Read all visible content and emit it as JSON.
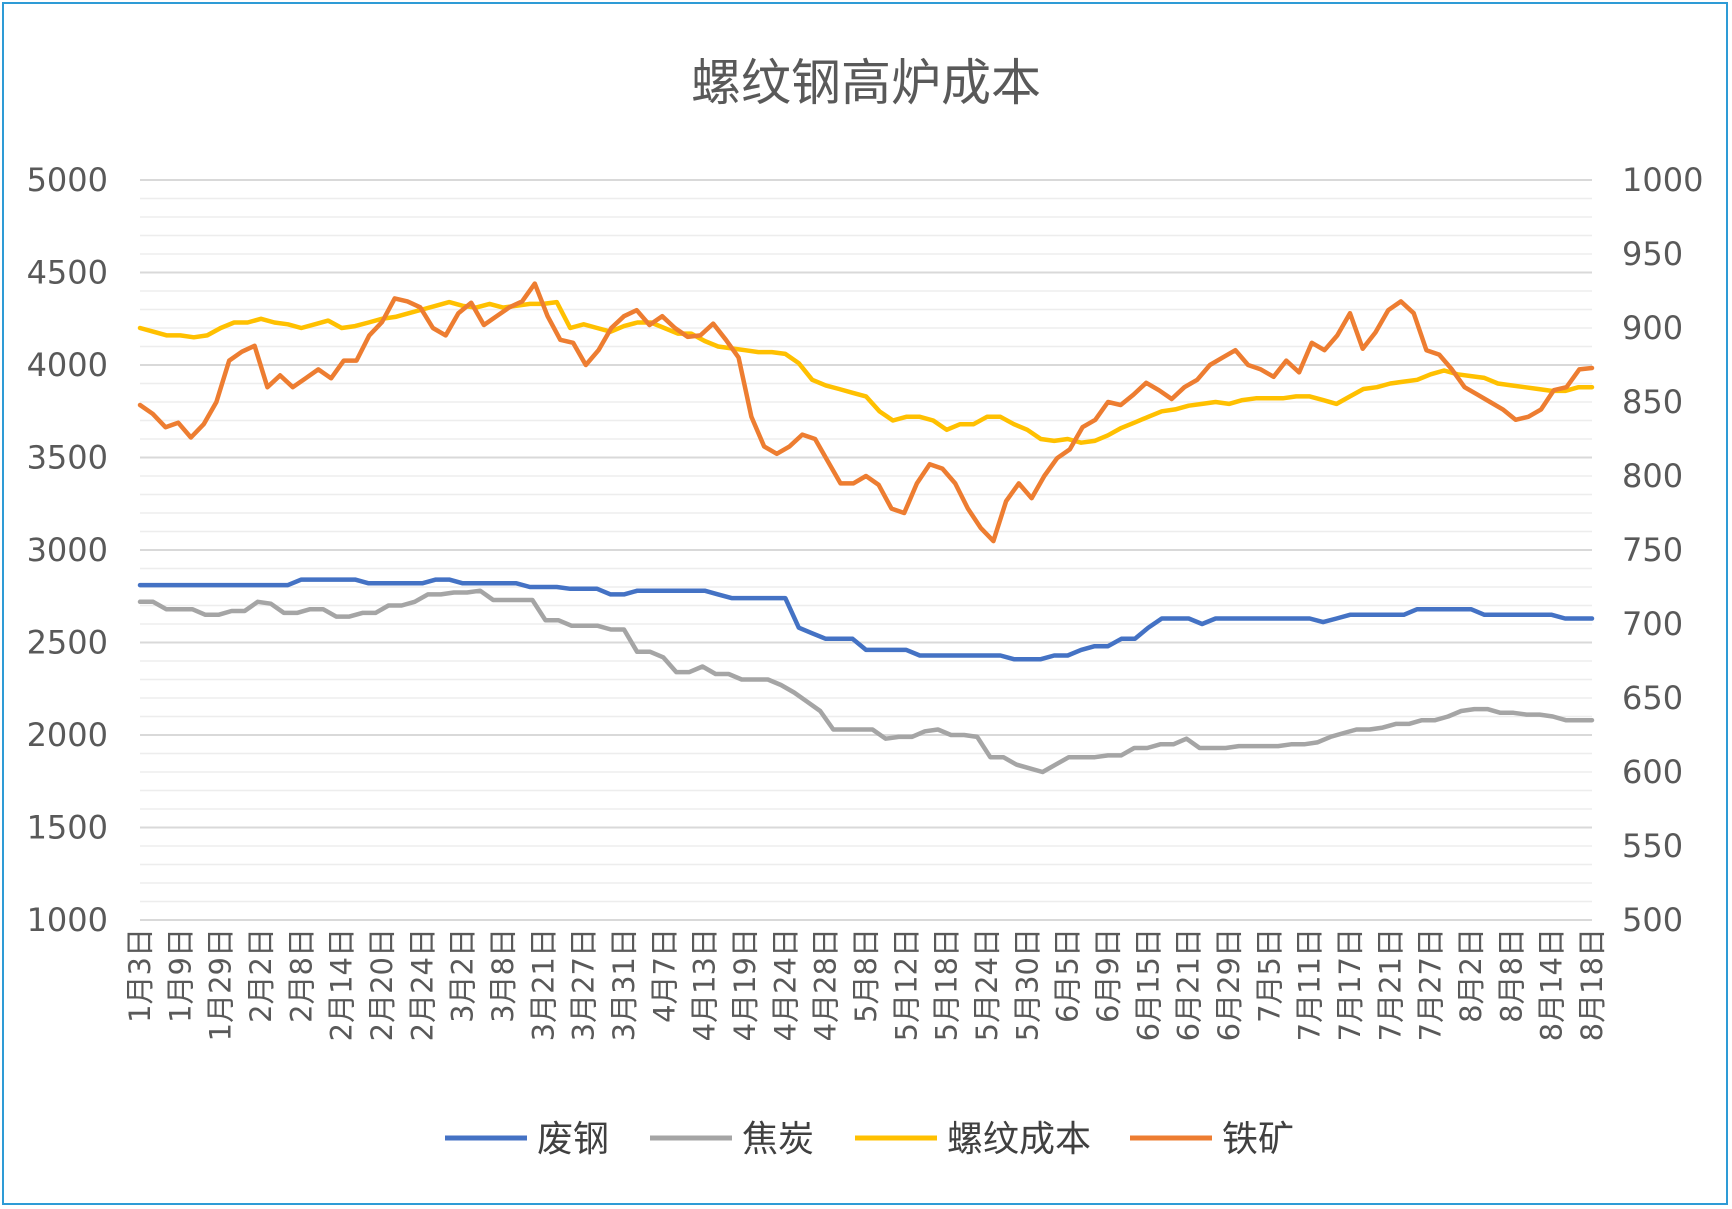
{
  "chart_data": {
    "type": "line",
    "title": "螺纹钢高炉成本",
    "y_left": {
      "min": 1000,
      "max": 5000,
      "ticks": [
        1000,
        1500,
        2000,
        2500,
        3000,
        3500,
        4000,
        4500,
        5000
      ]
    },
    "y_right": {
      "min": 500,
      "max": 1000,
      "ticks": [
        500,
        550,
        600,
        650,
        700,
        750,
        800,
        850,
        900,
        950,
        1000
      ]
    },
    "grid": true,
    "legend_position": "bottom",
    "x_tick_labels": [
      "1月3日",
      "1月9日",
      "1月29日",
      "2月2日",
      "2月8日",
      "2月14日",
      "2月20日",
      "2月24日",
      "3月2日",
      "3月8日",
      "3月21日",
      "3月27日",
      "3月31日",
      "4月7日",
      "4月13日",
      "4月19日",
      "4月24日",
      "4月28日",
      "5月8日",
      "5月12日",
      "5月18日",
      "5月24日",
      "5月30日",
      "6月5日",
      "6月9日",
      "6月15日",
      "6月21日",
      "6月29日",
      "7月5日",
      "7月11日",
      "7月17日",
      "7月21日",
      "7月27日",
      "8月2日",
      "8月8日",
      "8月14日",
      "8月18日"
    ],
    "series": [
      {
        "name": "废钢",
        "axis": "left",
        "color": "#4472C4",
        "values": [
          2810,
          2810,
          2810,
          2810,
          2810,
          2810,
          2810,
          2810,
          2810,
          2810,
          2810,
          2810,
          2840,
          2840,
          2840,
          2840,
          2840,
          2820,
          2820,
          2820,
          2820,
          2820,
          2840,
          2840,
          2820,
          2820,
          2820,
          2820,
          2820,
          2800,
          2800,
          2800,
          2790,
          2790,
          2790,
          2760,
          2760,
          2780,
          2780,
          2780,
          2780,
          2780,
          2780,
          2760,
          2740,
          2740,
          2740,
          2740,
          2740,
          2580,
          2550,
          2520,
          2520,
          2520,
          2460,
          2460,
          2460,
          2460,
          2430,
          2430,
          2430,
          2430,
          2430,
          2430,
          2430,
          2410,
          2410,
          2410,
          2430,
          2430,
          2460,
          2480,
          2480,
          2520,
          2520,
          2580,
          2630,
          2630,
          2630,
          2600,
          2630,
          2630,
          2630,
          2630,
          2630,
          2630,
          2630,
          2630,
          2610,
          2630,
          2650,
          2650,
          2650,
          2650,
          2650,
          2680,
          2680,
          2680,
          2680,
          2680,
          2650,
          2650,
          2650,
          2650,
          2650,
          2650,
          2630,
          2630,
          2630
        ]
      },
      {
        "name": "焦炭",
        "axis": "left",
        "color": "#A5A5A5",
        "values": [
          2720,
          2720,
          2680,
          2680,
          2680,
          2650,
          2650,
          2670,
          2670,
          2720,
          2710,
          2660,
          2660,
          2680,
          2680,
          2640,
          2640,
          2660,
          2660,
          2700,
          2700,
          2720,
          2760,
          2760,
          2770,
          2770,
          2780,
          2730,
          2730,
          2730,
          2730,
          2620,
          2620,
          2590,
          2590,
          2590,
          2570,
          2570,
          2450,
          2450,
          2420,
          2340,
          2340,
          2370,
          2330,
          2330,
          2300,
          2300,
          2300,
          2270,
          2230,
          2180,
          2130,
          2030,
          2030,
          2030,
          2030,
          1980,
          1990,
          1990,
          2020,
          2030,
          2000,
          2000,
          1990,
          1880,
          1880,
          1840,
          1820,
          1800,
          1840,
          1880,
          1880,
          1880,
          1890,
          1890,
          1930,
          1930,
          1950,
          1950,
          1980,
          1930,
          1930,
          1930,
          1940,
          1940,
          1940,
          1940,
          1950,
          1950,
          1960,
          1990,
          2010,
          2030,
          2030,
          2040,
          2060,
          2060,
          2080,
          2080,
          2100,
          2130,
          2140,
          2140,
          2120,
          2120,
          2110,
          2110,
          2100,
          2080,
          2080,
          2080
        ]
      },
      {
        "name": "螺纹成本",
        "axis": "left",
        "color": "#FFC000",
        "values": [
          4200,
          4180,
          4160,
          4160,
          4150,
          4160,
          4200,
          4230,
          4230,
          4250,
          4230,
          4220,
          4200,
          4220,
          4240,
          4200,
          4210,
          4230,
          4250,
          4260,
          4280,
          4300,
          4320,
          4340,
          4320,
          4310,
          4330,
          4310,
          4320,
          4330,
          4330,
          4340,
          4200,
          4220,
          4200,
          4180,
          4210,
          4230,
          4230,
          4200,
          4170,
          4170,
          4130,
          4100,
          4090,
          4080,
          4070,
          4070,
          4060,
          4010,
          3920,
          3890,
          3870,
          3850,
          3830,
          3750,
          3700,
          3720,
          3720,
          3700,
          3650,
          3680,
          3680,
          3720,
          3720,
          3680,
          3650,
          3600,
          3590,
          3600,
          3580,
          3590,
          3620,
          3660,
          3690,
          3720,
          3750,
          3760,
          3780,
          3790,
          3800,
          3790,
          3810,
          3820,
          3820,
          3820,
          3830,
          3830,
          3810,
          3790,
          3830,
          3870,
          3880,
          3900,
          3910,
          3920,
          3950,
          3970,
          3950,
          3940,
          3930,
          3900,
          3890,
          3880,
          3870,
          3860,
          3860,
          3880,
          3880
        ]
      },
      {
        "name": "铁矿",
        "axis": "right",
        "color": "#ED7D31",
        "values": [
          848,
          842,
          833,
          836,
          826,
          835,
          850,
          878,
          884,
          888,
          860,
          868,
          860,
          866,
          872,
          866,
          878,
          878,
          895,
          904,
          920,
          918,
          914,
          900,
          895,
          910,
          917,
          902,
          908,
          914,
          918,
          930,
          908,
          892,
          890,
          875,
          885,
          900,
          908,
          912,
          902,
          908,
          900,
          894,
          895,
          903,
          892,
          880,
          840,
          820,
          815,
          820,
          828,
          825,
          810,
          795,
          795,
          800,
          794,
          778,
          775,
          795,
          808,
          805,
          795,
          778,
          765,
          756,
          783,
          795,
          785,
          800,
          812,
          818,
          833,
          838,
          850,
          848,
          855,
          863,
          858,
          852,
          860,
          865,
          875,
          880,
          885,
          875,
          872,
          867,
          878,
          870,
          890,
          885,
          895,
          910,
          886,
          897,
          912,
          918,
          910,
          885,
          882,
          872,
          860,
          855,
          850,
          845,
          838,
          840,
          845,
          858,
          860,
          872,
          873
        ]
      }
    ]
  },
  "legend": [
    {
      "label": "废钢",
      "color": "#4472C4"
    },
    {
      "label": "焦炭",
      "color": "#A5A5A5"
    },
    {
      "label": "螺纹成本",
      "color": "#FFC000"
    },
    {
      "label": "铁矿",
      "color": "#ED7D31"
    }
  ]
}
